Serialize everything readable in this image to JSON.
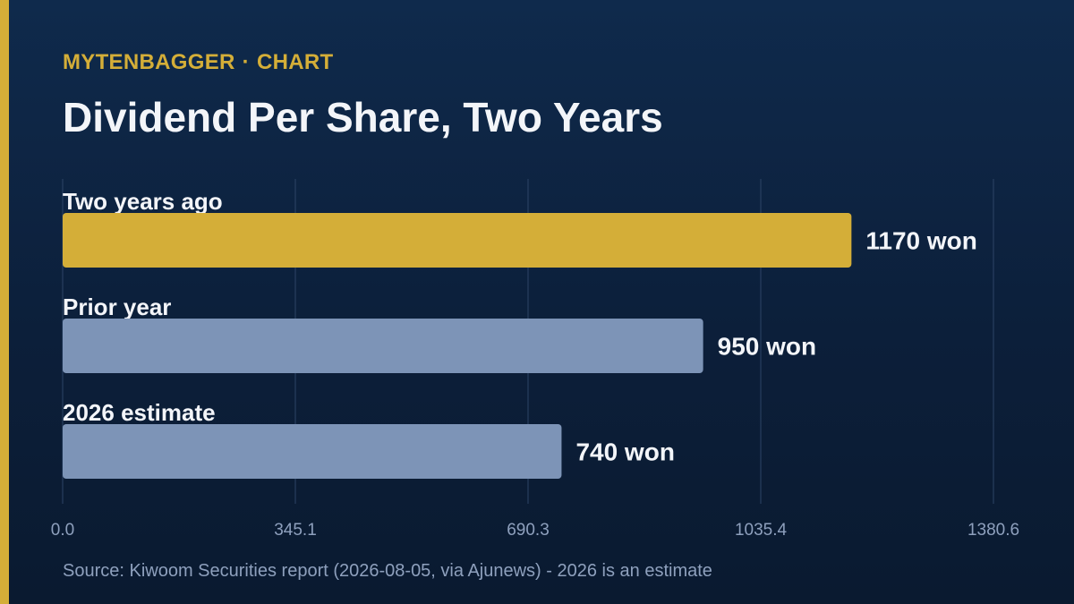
{
  "header": {
    "brand": "MYTENBAGGER",
    "separator": "·",
    "section": "CHART",
    "title": "Dividend Per Share, Two Years"
  },
  "chart_data": {
    "type": "bar",
    "orientation": "horizontal",
    "categories": [
      "Two years ago",
      "Prior year",
      "2026 estimate"
    ],
    "values": [
      1170,
      950,
      740
    ],
    "value_labels": [
      "1170 won",
      "950 won",
      "740 won"
    ],
    "unit": "won",
    "xlim": [
      0,
      1380.6
    ],
    "xticks": [
      "0.0",
      "345.1",
      "690.3",
      "1035.4",
      "1380.6"
    ],
    "grid": true,
    "colors": [
      "#d4ae38",
      "#7d94b7",
      "#7d94b7"
    ]
  },
  "footer": {
    "source": "Source: Kiwoom Securities report (2026-08-05, via Ajunews) - 2026 is an estimate"
  },
  "colors": {
    "accent": "#d4ae38",
    "muted_bar": "#7d94b7",
    "background": "#0d223f"
  }
}
